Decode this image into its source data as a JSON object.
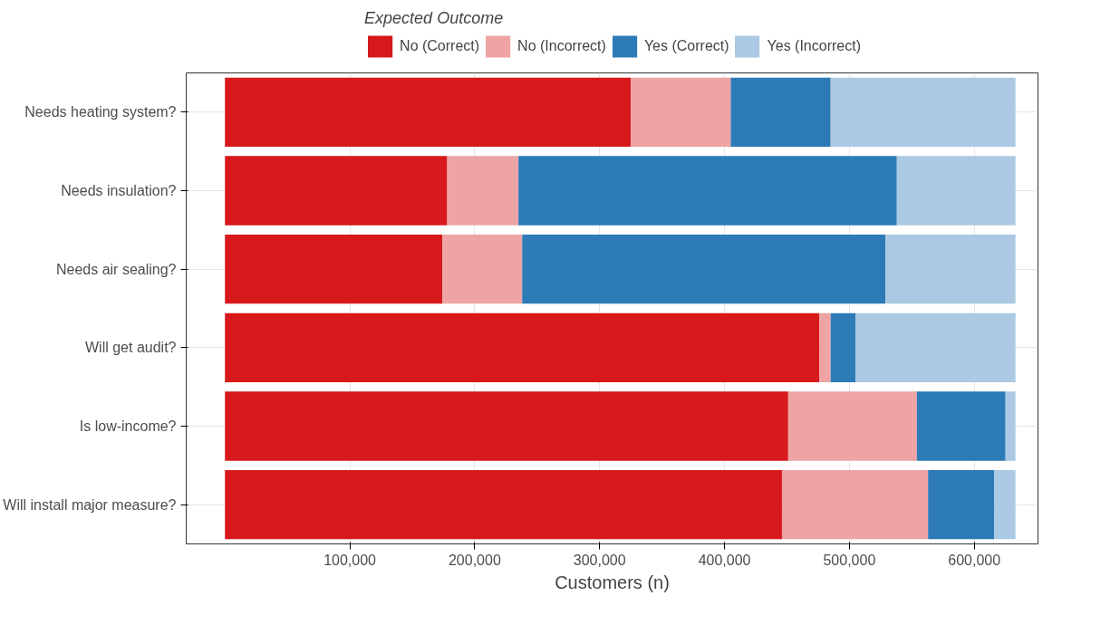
{
  "chart_data": {
    "type": "bar",
    "orientation": "horizontal",
    "stacked": true,
    "categories": [
      "Needs heating system?",
      "Needs insulation?",
      "Needs air sealing?",
      "Will get audit?",
      "Is low-income?",
      "Will install major measure?"
    ],
    "series": [
      {
        "name": "No (Correct)",
        "color": "#d7191c",
        "values": [
          325000,
          178000,
          174000,
          476000,
          451000,
          446000
        ]
      },
      {
        "name": "No (Incorrect)",
        "color": "#eea4a5",
        "values": [
          80000,
          57000,
          64000,
          9000,
          103000,
          117000
        ]
      },
      {
        "name": "Yes (Correct)",
        "color": "#2c7bb6",
        "values": [
          80000,
          303000,
          291000,
          20000,
          71000,
          53000
        ]
      },
      {
        "name": "Yes (Incorrect)",
        "color": "#abc9e2",
        "values": [
          148000,
          95000,
          104000,
          128000,
          8000,
          17000
        ]
      }
    ],
    "xlabel": "Customers (n)",
    "legend_title": "Expected Outcome",
    "legend": "top",
    "xlim": [
      -31000,
      651000
    ],
    "xticks": [
      {
        "value": 100000,
        "label": "100,000"
      },
      {
        "value": 200000,
        "label": "200,000"
      },
      {
        "value": 300000,
        "label": "300,000"
      },
      {
        "value": 400000,
        "label": "400,000"
      },
      {
        "value": 500000,
        "label": "500,000"
      },
      {
        "value": 600000,
        "label": "600,000"
      }
    ],
    "grid": true
  }
}
